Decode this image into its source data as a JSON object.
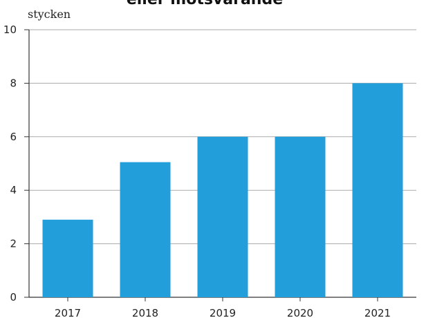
{
  "chart_data": {
    "type": "bar",
    "title_fragment": "eller motsvarande",
    "unit_label": "stycken",
    "categories": [
      "2017",
      "2018",
      "2019",
      "2020",
      "2021"
    ],
    "values": [
      2.9,
      5.05,
      6,
      6,
      8
    ],
    "ylim": [
      0,
      10
    ],
    "yticks": [
      0,
      2,
      4,
      6,
      8,
      10
    ],
    "grid": true,
    "bar_color": "#229fdb",
    "grid_color": "#aaaaaa",
    "axis_color": "#333333"
  }
}
